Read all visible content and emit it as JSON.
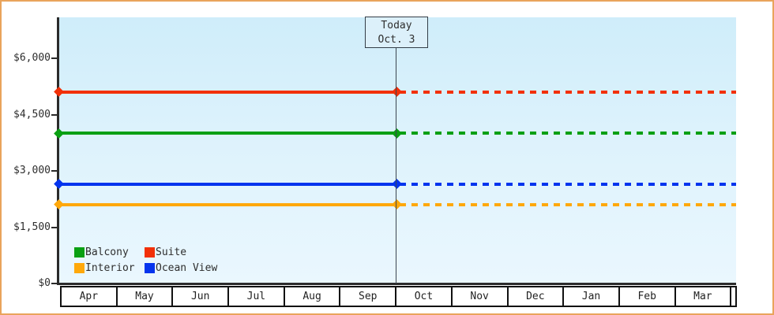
{
  "window": {
    "frame_border_color": "#e9a45c"
  },
  "today_marker": {
    "line1": "Today",
    "line2": "Oct. 3"
  },
  "chart_data": {
    "type": "line",
    "title": "",
    "xlabel": "",
    "ylabel": "",
    "x_categories": [
      "Apr",
      "May",
      "Jun",
      "Jul",
      "Aug",
      "Sep",
      "Oct",
      "Nov",
      "Dec",
      "Jan",
      "Feb",
      "Mar"
    ],
    "today_boundary_after_month": "Sep",
    "ylim": [
      0,
      7090
    ],
    "grid": false,
    "y_ticks": [
      {
        "value": 0,
        "label": "$0"
      },
      {
        "value": 1500,
        "label": "$1,500"
      },
      {
        "value": 3000,
        "label": "$3,000"
      },
      {
        "value": 4500,
        "label": "$4,500"
      },
      {
        "value": 6000,
        "label": "$6,000"
      }
    ],
    "series": [
      {
        "name": "Suite",
        "color": "#f23008",
        "value": 5100,
        "past_style": "solid",
        "future_style": "dotted",
        "marker": "diamond"
      },
      {
        "name": "Balcony",
        "color": "#0aa013",
        "value": 4000,
        "past_style": "solid",
        "future_style": "dotted",
        "marker": "diamond"
      },
      {
        "name": "Ocean View",
        "color": "#0434ee",
        "value": 2650,
        "past_style": "solid",
        "future_style": "dotted",
        "marker": "diamond"
      },
      {
        "name": "Interior",
        "color": "#ffa80a",
        "value": 2100,
        "past_style": "solid",
        "future_style": "dotted",
        "marker": "diamond"
      }
    ],
    "legend_order": [
      "Balcony",
      "Suite",
      "Interior",
      "Ocean View"
    ],
    "legend_position": "bottom-left-inside"
  }
}
